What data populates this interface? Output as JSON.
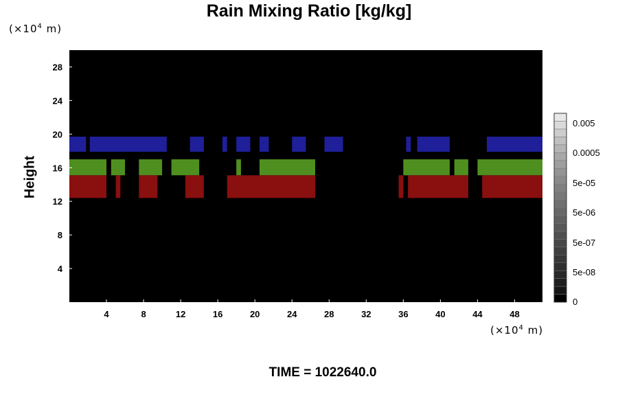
{
  "chart_data": {
    "type": "heatmap",
    "title": "Rain Mixing Ratio [kg/kg]",
    "ylabel": "Height",
    "xlabel": "",
    "x_unit": {
      "prefix": "(×10",
      "exp": "4",
      "suffix": " m)"
    },
    "y_unit": {
      "prefix": "(×10",
      "exp": "4",
      "suffix": " m)"
    },
    "xlim": [
      0,
      51
    ],
    "ylim": [
      0,
      30
    ],
    "x_ticks": [
      "4",
      "8",
      "12",
      "16",
      "20",
      "24",
      "28",
      "32",
      "36",
      "40",
      "44",
      "48"
    ],
    "y_ticks": [
      "4",
      "8",
      "12",
      "16",
      "20",
      "24",
      "28"
    ],
    "background_color": "#000000",
    "grid": false,
    "colorbar": {
      "labels": [
        "0",
        "5e-08",
        "5e-07",
        "5e-06",
        "5e-05",
        "0.0005",
        "0.005"
      ],
      "colors": [
        "#000000",
        "#151515",
        "#1f1f1f",
        "#282828",
        "#303030",
        "#383838",
        "#404040",
        "#484848",
        "#505050",
        "#585858",
        "#606060",
        "#686868",
        "#707070",
        "#787878",
        "#808080",
        "#8a8a8a",
        "#949494",
        "#9e9e9e",
        "#a8a8a8",
        "#b4b4b4",
        "#c0c0c0",
        "#cdcdcd",
        "#dadada",
        "#e8e8e8"
      ]
    },
    "bands": [
      {
        "name": "upper",
        "color": "#1f1f99",
        "y_range": [
          17.9,
          19.7
        ],
        "segments": [
          [
            0.0,
            1.8
          ],
          [
            2.2,
            10.5
          ],
          [
            13.0,
            14.5
          ],
          [
            16.5,
            17.0
          ],
          [
            18.0,
            19.5
          ],
          [
            20.5,
            21.5
          ],
          [
            24.0,
            25.5
          ],
          [
            27.5,
            29.5
          ],
          [
            36.3,
            36.8
          ],
          [
            37.5,
            41.0
          ],
          [
            45.0,
            51.0
          ]
        ]
      },
      {
        "name": "middle",
        "color": "#4f8f1f",
        "y_range": [
          15.1,
          17.0
        ],
        "segments": [
          [
            0.0,
            4.0
          ],
          [
            4.5,
            6.0
          ],
          [
            7.5,
            10.0
          ],
          [
            11.0,
            14.0
          ],
          [
            18.0,
            18.5
          ],
          [
            20.5,
            26.5
          ],
          [
            36.0,
            41.0
          ],
          [
            41.5,
            43.0
          ],
          [
            44.0,
            51.0
          ]
        ]
      },
      {
        "name": "lower",
        "color": "#8a0f0f",
        "y_range": [
          12.4,
          15.1
        ],
        "segments": [
          [
            0.0,
            4.0
          ],
          [
            5.0,
            5.5
          ],
          [
            7.5,
            9.5
          ],
          [
            12.5,
            14.5
          ],
          [
            17.0,
            26.5
          ],
          [
            35.5,
            36.0
          ],
          [
            36.5,
            43.0
          ],
          [
            44.5,
            51.0
          ]
        ]
      }
    ]
  },
  "time_label": "TIME = 1022640.0"
}
